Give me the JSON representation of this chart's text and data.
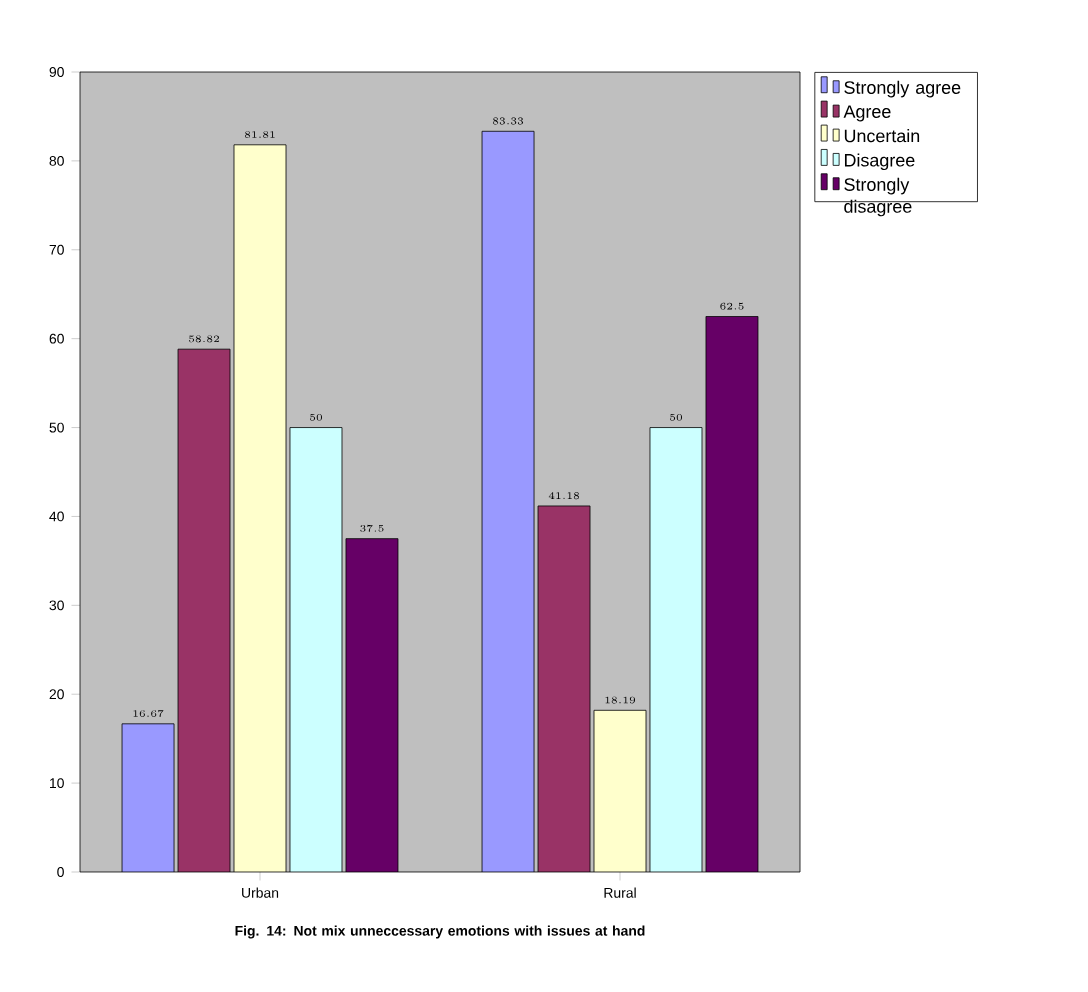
{
  "chart_data": {
    "type": "bar",
    "categories": [
      "Urban",
      "Rural"
    ],
    "series": [
      {
        "name": "Strongly agree",
        "color": "#9999ff",
        "values": [
          16.67,
          83.33
        ]
      },
      {
        "name": "Agree",
        "color": "#993366",
        "values": [
          58.82,
          41.18
        ]
      },
      {
        "name": "Uncertain",
        "color": "#ffffcc",
        "values": [
          81.81,
          18.19
        ]
      },
      {
        "name": "Disagree",
        "color": "#ccffff",
        "values": [
          50,
          50
        ]
      },
      {
        "name": "Strongly disagree",
        "color": "#660066",
        "values": [
          37.5,
          62.5
        ]
      }
    ],
    "ylim": [
      0,
      90
    ],
    "yticks": [
      0,
      10,
      20,
      30,
      40,
      50,
      60,
      70,
      80,
      90
    ],
    "data_labels": true,
    "legend": "right",
    "annotations": [
      "Fig. 14: Not mix unneccessary emotions with issues at hand"
    ]
  }
}
